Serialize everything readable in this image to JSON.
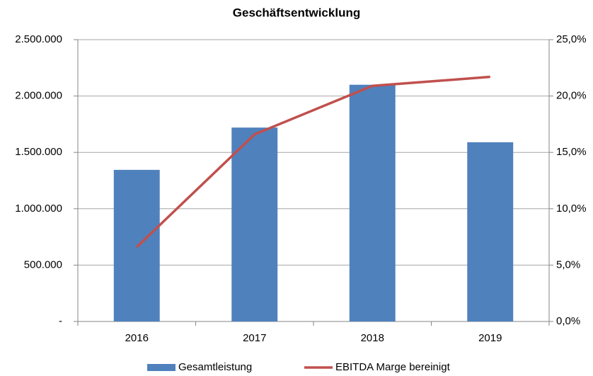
{
  "chart_data": {
    "type": "bar",
    "title": "Geschäftsentwicklung",
    "categories": [
      "2016",
      "2017",
      "2018",
      "2019"
    ],
    "series": [
      {
        "name": "Gesamtleistung",
        "color": "#4f81bd",
        "values": [
          1345000,
          1720000,
          2100000,
          1590000
        ]
      },
      {
        "name": "EBITDA Marge bereinigt",
        "color": "#c0504d",
        "type": "line",
        "axis": "y2",
        "values": [
          6.6,
          16.6,
          20.9,
          21.7
        ]
      }
    ],
    "ylim": [
      0,
      2500000
    ],
    "yticks": [
      {
        "value": 0,
        "label": "-"
      },
      {
        "value": 500000,
        "label": "500.000"
      },
      {
        "value": 1000000,
        "label": "1.000.000"
      },
      {
        "value": 1500000,
        "label": "1.500.000"
      },
      {
        "value": 2000000,
        "label": "2.000.000"
      },
      {
        "value": 2500000,
        "label": "2.500.000"
      }
    ],
    "y2lim": [
      0,
      25
    ],
    "y2ticks": [
      {
        "value": 0,
        "label": "0,0%"
      },
      {
        "value": 5,
        "label": "5,0%"
      },
      {
        "value": 10,
        "label": "10,0%"
      },
      {
        "value": 15,
        "label": "15,0%"
      },
      {
        "value": 20,
        "label": "20,0%"
      },
      {
        "value": 25,
        "label": "25,0%"
      }
    ],
    "grid": true,
    "legend": "bottom"
  }
}
